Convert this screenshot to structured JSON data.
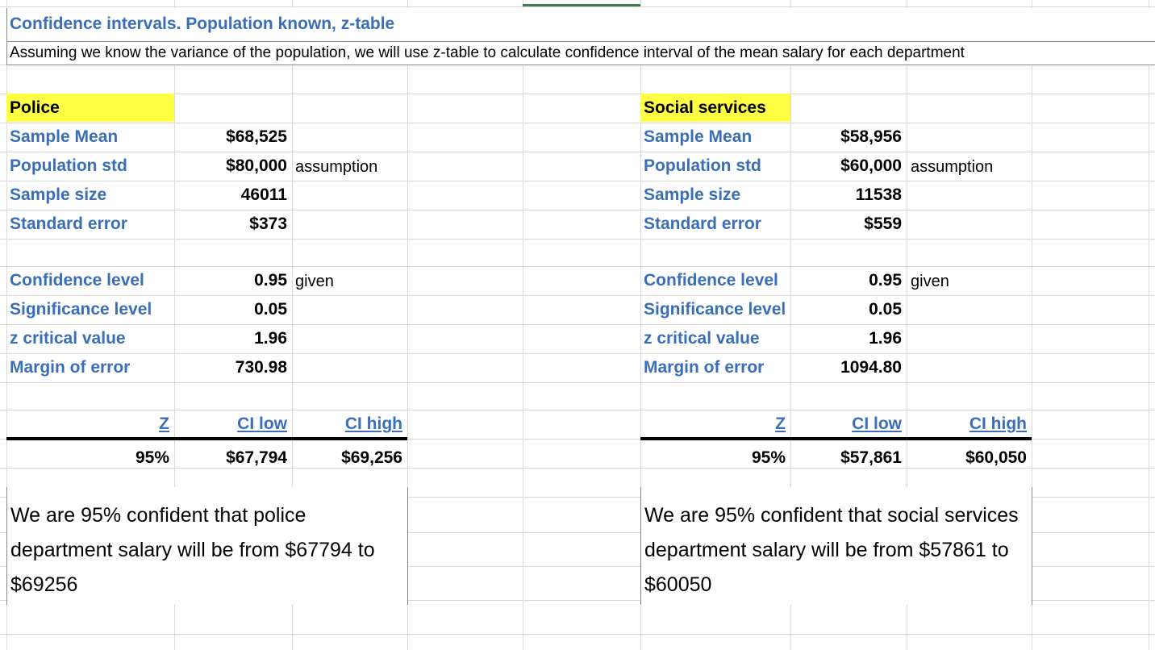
{
  "title": "Confidence intervals. Population known, z-table",
  "subtitle": "Assuming we know the variance of the population, we will use z-table to calculate confidence interval of the mean salary for each department",
  "colors": {
    "label_blue": "#3a6fb8",
    "highlight_yellow": "#ffff44",
    "gridline": "#d9d9d9"
  },
  "police": {
    "heading": "Police",
    "labels": {
      "sample_mean": "Sample Mean",
      "population_std": "Population std",
      "sample_size": "Sample size",
      "standard_error": "Standard error",
      "confidence_level": "Confidence level",
      "significance_level": "Significance level",
      "z_critical": "z critical value",
      "margin_of_error": "Margin of error"
    },
    "values": {
      "sample_mean": "$68,525",
      "population_std": "$80,000",
      "sample_size": "46011",
      "standard_error": "$373",
      "confidence_level": "0.95",
      "significance_level": "0.05",
      "z_critical": "1.96",
      "margin_of_error": "730.98"
    },
    "notes": {
      "population_std": "assumption",
      "confidence_level": "given"
    },
    "ci_headers": {
      "z": "Z",
      "low": "CI low",
      "high": "CI high"
    },
    "ci_row": {
      "z": "95%",
      "low": "$67,794",
      "high": "$69,256"
    },
    "conclusion": "We are 95% confident that police department salary will be from $67794 to $69256"
  },
  "social": {
    "heading": "Social services",
    "labels": {
      "sample_mean": "Sample Mean",
      "population_std": "Population std",
      "sample_size": "Sample size",
      "standard_error": "Standard error",
      "confidence_level": "Confidence level",
      "significance_level": "Significance level",
      "z_critical": "z critical value",
      "margin_of_error": "Margin of error"
    },
    "values": {
      "sample_mean": "$58,956",
      "population_std": "$60,000",
      "sample_size": "11538",
      "standard_error": "$559",
      "confidence_level": "0.95",
      "significance_level": "0.05",
      "z_critical": "1.96",
      "margin_of_error": "1094.80"
    },
    "notes": {
      "population_std": "assumption",
      "confidence_level": "given"
    },
    "ci_headers": {
      "z": "Z",
      "low": "CI low",
      "high": "CI high"
    },
    "ci_row": {
      "z": "95%",
      "low": "$57,861",
      "high": "$60,050"
    },
    "conclusion": "We are 95% confident that social services department salary will be from $57861 to $60050"
  }
}
